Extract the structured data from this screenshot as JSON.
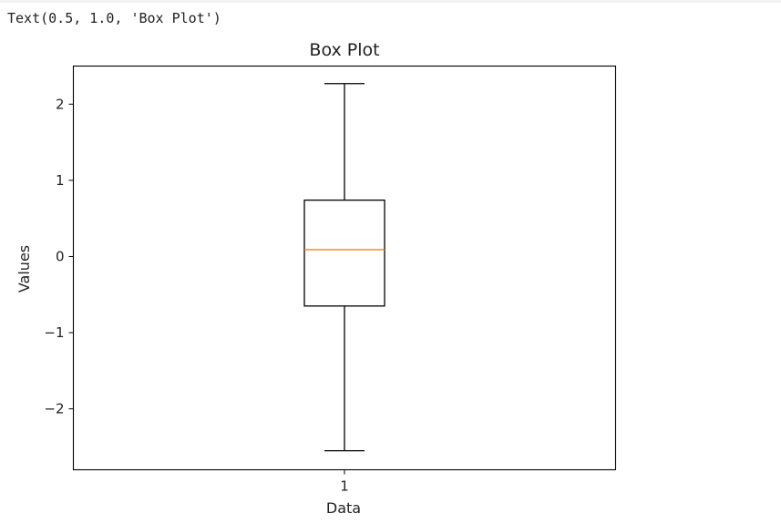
{
  "output": {
    "text": "Text(0.5, 1.0, 'Box Plot')"
  },
  "chart_data": {
    "type": "box",
    "title": "Box Plot",
    "xlabel": "Data",
    "ylabel": "Values",
    "categories": [
      "1"
    ],
    "ylim": [
      -2.8,
      2.5
    ],
    "yticks": [
      2,
      1,
      0,
      -1,
      -2
    ],
    "ytick_labels": [
      "2",
      "1",
      "0",
      "−1",
      "−2"
    ],
    "grid": false,
    "boxes": [
      {
        "label": "1",
        "whisker_low": -2.55,
        "q1": -0.65,
        "median": 0.09,
        "q3": 0.74,
        "whisker_high": 2.27
      }
    ],
    "colors": {
      "box": "#000000",
      "median": "#ff7f0e",
      "axes": "#000000"
    }
  }
}
